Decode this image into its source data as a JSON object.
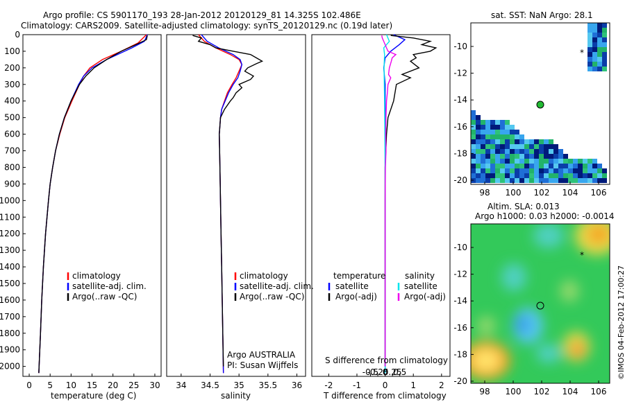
{
  "header": {
    "line1": "Argo profile: CS 5901170_193 28-Jan-2012 20120129_81 14.325S 102.486E",
    "line2": "Climatology: CARS2009. Satellite-adjusted climatology: synTS_20120129.nc (0.19d later)"
  },
  "colors": {
    "clim": "#ff0000",
    "sat": "#0000ff",
    "argo": "#000000",
    "sat_s": "#00e5ee",
    "argo_s": "#ee00ee"
  },
  "depth_axis": {
    "ticks": [
      0,
      100,
      200,
      300,
      400,
      500,
      600,
      700,
      800,
      900,
      1000,
      1100,
      1200,
      1300,
      1400,
      1500,
      1600,
      1700,
      1800,
      1900,
      2000
    ],
    "range": [
      0,
      2060
    ]
  },
  "temp_panel": {
    "xlabel": "temperature (deg C)",
    "xticks": [
      0,
      5,
      10,
      15,
      20,
      25,
      30
    ],
    "xrange": [
      -1.5,
      31.5
    ],
    "legend": [
      "climatology",
      "satellite-adj. clim.",
      "Argo(..raw -QC)"
    ]
  },
  "sal_panel": {
    "xlabel": "salinity",
    "xticks": [
      "34",
      "34.5",
      "35",
      "35.5",
      "36"
    ],
    "xrange": [
      33.75,
      36.15
    ],
    "legend": [
      "climatology",
      "satellite-adj. clim.",
      "Argo(..raw -QC)"
    ],
    "note1": "Argo AUSTRALIA",
    "note2": "PI: Susan Wijffels"
  },
  "diff_panel": {
    "legend_hdr_t": "temperature",
    "legend_hdr_s": "salinity",
    "legend_t": [
      "satellite",
      "Argo(-adj)"
    ],
    "legend_s": [
      "satellite",
      "Argo(-adj)"
    ],
    "top_label": "S difference from climatology",
    "top_ticks": [
      "-0.5",
      "-0.25",
      "0",
      "0.25",
      "0.5"
    ],
    "top_tick_values": [
      -0.5,
      -0.25,
      0,
      0.25,
      0.5
    ],
    "xlabel": "T difference from climatology",
    "xticks": [
      "-2",
      "-1",
      "0",
      "1",
      "2"
    ],
    "xtick_values": [
      -2,
      -1,
      0,
      1,
      2
    ],
    "xrange": [
      -2.6,
      2.3
    ]
  },
  "sst_map": {
    "title": "sat. SST: NaN Argo: 28.1",
    "xticks": [
      "98",
      "100",
      "102",
      "104",
      "106"
    ],
    "yticks": [
      "-10",
      "-12",
      "-14",
      "-16",
      "-18",
      "-20"
    ]
  },
  "sla_map": {
    "title1": "Altim. SLA: 0.013",
    "title2": "Argo h1000: 0.03 h2000: -0.0014",
    "xticks": [
      "98",
      "100",
      "102",
      "104",
      "106"
    ],
    "yticks": [
      "-10",
      "-12",
      "-14",
      "-16",
      "-18",
      "-20"
    ]
  },
  "credit": "©IMOS 04-Feb-2012 17:00:27",
  "chart_data": [
    {
      "type": "line",
      "xlabel": "temperature (deg C)",
      "ylabel": "",
      "xlim": [
        -1.5,
        31.5
      ],
      "ylim": [
        2060,
        0
      ],
      "series": [
        {
          "name": "climatology",
          "depth": [
            0,
            50,
            100,
            150,
            200,
            250,
            300,
            400,
            500,
            600,
            700,
            800,
            900,
            1000,
            1200,
            1400,
            1600,
            1800,
            2040
          ],
          "values": [
            28.0,
            26.0,
            22.0,
            17.5,
            14.5,
            13.0,
            12.0,
            10.2,
            8.5,
            7.3,
            6.3,
            5.6,
            5.0,
            4.6,
            3.9,
            3.4,
            3.0,
            2.7,
            2.3
          ]
        },
        {
          "name": "satellite-adj. clim.",
          "depth": [
            0,
            40,
            80,
            150,
            200,
            250,
            300,
            400,
            500,
            600,
            700,
            800,
            900,
            1000,
            1200,
            1400,
            1600,
            1800,
            2040
          ],
          "values": [
            28.2,
            27.5,
            24.5,
            18.5,
            15.0,
            13.0,
            11.8,
            10.0,
            8.4,
            7.2,
            6.3,
            5.6,
            5.0,
            4.6,
            3.9,
            3.4,
            3.0,
            2.7,
            2.3
          ]
        },
        {
          "name": "Argo(..raw -QC)",
          "depth": [
            5,
            30,
            60,
            100,
            150,
            200,
            250,
            300,
            400,
            500,
            600,
            700,
            800,
            900,
            1000,
            1200,
            1400,
            1600,
            1800,
            2040
          ],
          "values": [
            28.2,
            28.0,
            25.5,
            22.0,
            18.5,
            15.5,
            13.5,
            12.0,
            10.0,
            8.4,
            7.2,
            6.3,
            5.6,
            5.0,
            4.6,
            3.9,
            3.4,
            3.0,
            2.7,
            2.3
          ]
        }
      ]
    },
    {
      "type": "line",
      "xlabel": "salinity",
      "ylabel": "",
      "xlim": [
        33.75,
        36.15
      ],
      "ylim": [
        2060,
        0
      ],
      "series": [
        {
          "name": "climatology",
          "depth": [
            0,
            40,
            80,
            120,
            150,
            180,
            220,
            260,
            300,
            350,
            400,
            450,
            500,
            600,
            800,
            1000,
            1200,
            1400,
            1600,
            1800,
            2040
          ],
          "values": [
            34.3,
            34.4,
            34.6,
            34.85,
            35.0,
            35.05,
            35.0,
            34.95,
            34.88,
            34.8,
            34.75,
            34.7,
            34.68,
            34.66,
            34.67,
            34.68,
            34.69,
            34.7,
            34.71,
            34.72,
            34.73
          ]
        },
        {
          "name": "satellite-adj. clim.",
          "depth": [
            0,
            40,
            80,
            120,
            150,
            180,
            220,
            260,
            300,
            350,
            400,
            450,
            500,
            600,
            800,
            1000,
            1200,
            1400,
            1600,
            1800,
            2040
          ],
          "values": [
            34.35,
            34.45,
            34.65,
            34.9,
            35.02,
            35.05,
            35.02,
            34.98,
            34.9,
            34.82,
            34.76,
            34.7,
            34.68,
            34.66,
            34.67,
            34.68,
            34.69,
            34.7,
            34.71,
            34.72,
            34.73
          ]
        },
        {
          "name": "Argo(..raw -QC)",
          "depth": [
            5,
            20,
            40,
            60,
            80,
            100,
            120,
            140,
            160,
            175,
            200,
            220,
            250,
            270,
            300,
            320,
            350,
            380,
            400,
            450,
            500,
            600,
            800,
            1000,
            1200,
            1400,
            1600,
            1800,
            2000
          ],
          "values": [
            34.2,
            34.35,
            34.3,
            34.5,
            34.6,
            34.9,
            35.2,
            35.3,
            35.4,
            35.3,
            35.15,
            35.1,
            35.25,
            35.2,
            35.0,
            35.05,
            34.95,
            34.9,
            34.85,
            34.75,
            34.68,
            34.66,
            34.67,
            34.68,
            34.69,
            34.7,
            34.71,
            34.72,
            34.73
          ]
        }
      ]
    },
    {
      "type": "line",
      "xlabel": "T difference from climatology",
      "ylabel": "",
      "xlim": [
        -2.6,
        2.3
      ],
      "ylim": [
        2060,
        0
      ],
      "series": [
        {
          "name": "temperature satellite",
          "depth": [
            0,
            30,
            60,
            100,
            140,
            200,
            300,
            500,
            800,
            1200,
            1600,
            2040
          ],
          "values": [
            0.3,
            0.7,
            0.5,
            0.2,
            0.0,
            -0.05,
            0.0,
            0.0,
            0.0,
            0.0,
            0.0,
            0.0
          ]
        },
        {
          "name": "temperature Argo(-adj)",
          "depth": [
            5,
            20,
            40,
            60,
            80,
            100,
            120,
            140,
            160,
            200,
            240,
            260,
            300,
            400,
            500,
            600,
            800,
            1000,
            1400,
            1800,
            2000
          ],
          "values": [
            0.2,
            1.0,
            1.6,
            1.3,
            1.8,
            1.6,
            1.0,
            1.1,
            0.9,
            1.2,
            0.6,
            0.9,
            0.4,
            0.3,
            0.1,
            0.05,
            0.0,
            0.0,
            0.0,
            0.0,
            0.0
          ]
        },
        {
          "name": "salinity satellite",
          "depth": [
            0,
            40,
            80,
            120,
            200,
            300,
            400,
            600,
            800,
            1200,
            1600,
            2040
          ],
          "values": [
            0.05,
            0.15,
            -0.05,
            -0.02,
            -0.04,
            -0.03,
            -0.02,
            -0.01,
            0.0,
            0.0,
            0.0,
            0.0
          ]
        },
        {
          "name": "salinity Argo(-adj)",
          "depth": [
            5,
            20,
            40,
            60,
            80,
            100,
            120,
            140,
            160,
            200,
            240,
            260,
            300,
            350,
            400,
            450,
            500,
            600,
            700,
            800,
            1000,
            1400,
            1800,
            2000
          ],
          "values": [
            -0.12,
            -0.1,
            -0.05,
            0.0,
            0.05,
            0.1,
            0.38,
            0.25,
            0.22,
            0.15,
            0.12,
            0.2,
            0.1,
            0.08,
            0.05,
            0.04,
            0.03,
            0.02,
            0.03,
            0.01,
            0.0,
            0.0,
            0.0,
            0.0
          ]
        }
      ]
    }
  ]
}
